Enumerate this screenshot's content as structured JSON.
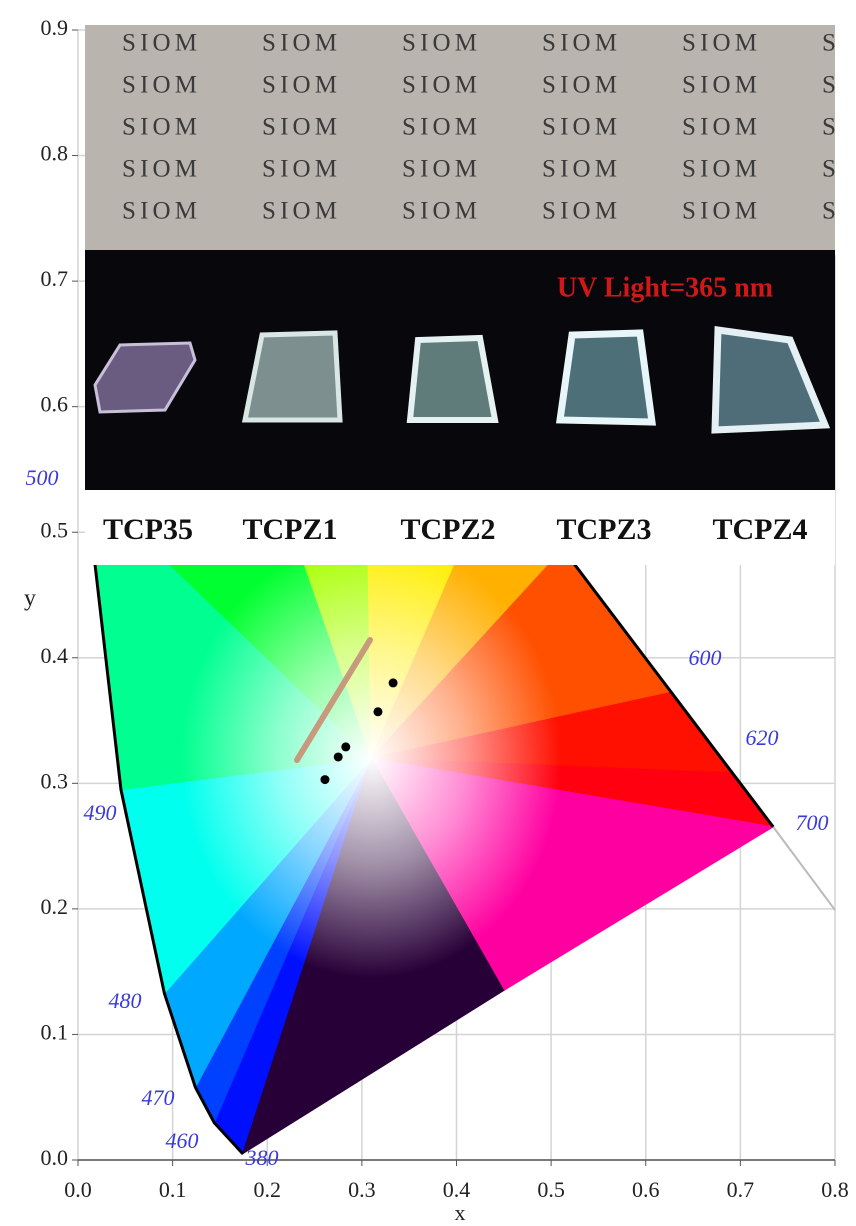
{
  "chart_data": {
    "type": "scatter",
    "x_label": "x",
    "y_label": "y",
    "x": [
      0.261,
      0.275,
      0.283,
      0.317,
      0.333
    ],
    "values": [
      0.303,
      0.321,
      0.329,
      0.357,
      0.38
    ],
    "color": "#000000",
    "xlim": [
      0,
      0.8
    ],
    "ylim": [
      0,
      0.9
    ],
    "xticks": [
      {
        "value": 0,
        "label": "0.0"
      },
      0.1,
      0.2,
      0.3,
      0.4,
      0.5,
      0.6,
      0.7,
      0.8
    ],
    "yticks": [
      {
        "value": 0,
        "label": "0.0"
      },
      0.1,
      0.2,
      0.3,
      0.4,
      0.5,
      0.6,
      0.7,
      0.8,
      0.9
    ],
    "grid": true,
    "annotations": [
      "500",
      "490",
      "480",
      "470",
      "460",
      "380",
      "600",
      "620",
      "700"
    ],
    "photo": {
      "background_text": "SIOM",
      "caption": "UV Light=365 nm",
      "samples": [
        "TCP35",
        "TCPZ1",
        "TCPZ2",
        "TCPZ3",
        "TCPZ4"
      ]
    }
  }
}
